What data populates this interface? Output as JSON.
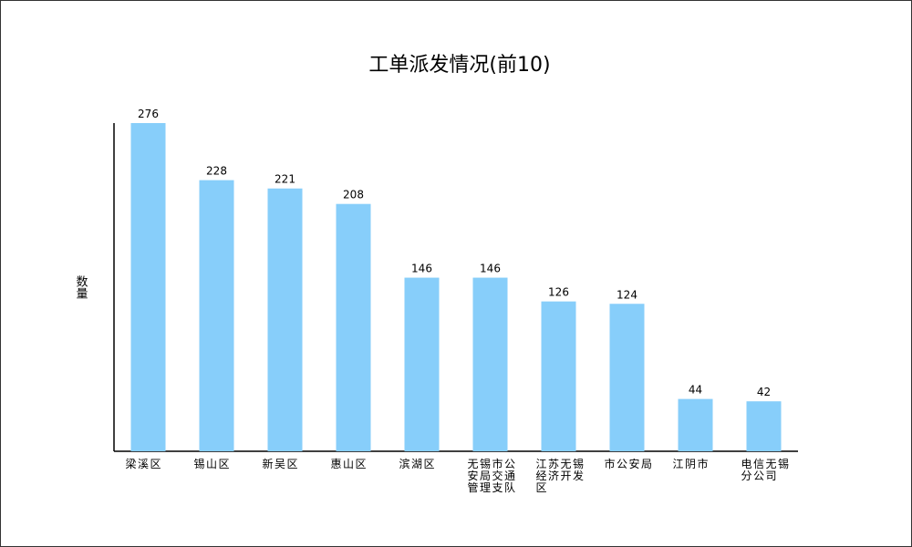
{
  "chart_data": {
    "type": "bar",
    "title": "工单派发情况(前10)",
    "y_label": "数量",
    "categories": [
      "梁溪区",
      "锡山区",
      "新吴区",
      "惠山区",
      "滨湖区",
      "无锡市公安局交通管理支队",
      "江苏无锡经济开发区",
      "市公安局",
      "江阴市",
      "电信无锡分公司"
    ],
    "values": [
      276,
      228,
      221,
      208,
      146,
      146,
      126,
      124,
      44,
      42
    ],
    "color": "#87cefa",
    "ylim": [
      0,
      276
    ]
  }
}
